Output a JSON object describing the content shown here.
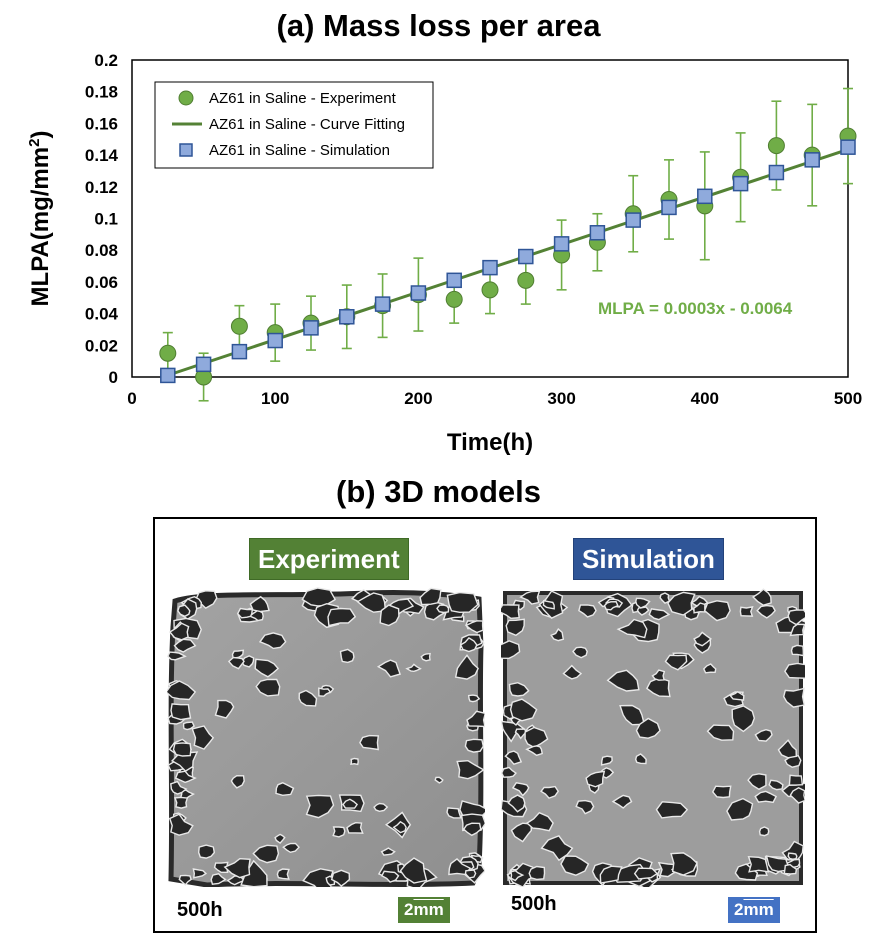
{
  "titles": {
    "a": "(a) Mass loss per area",
    "b": "(b) 3D models"
  },
  "chart_data": {
    "type": "scatter",
    "title": "(a) Mass loss per area",
    "xlabel": "Time(h)",
    "ylabel": "MLPA(mg/mm",
    "ylabel_sup": "2",
    "ylabel_close": ")",
    "xlim": [
      0,
      500
    ],
    "ylim": [
      0,
      0.2
    ],
    "xticks": [
      0,
      100,
      200,
      300,
      400,
      500
    ],
    "yticks": [
      0,
      0.02,
      0.04,
      0.06,
      0.08,
      0.1,
      0.12,
      0.14,
      0.16,
      0.18,
      0.2
    ],
    "ytick_labels": [
      "0",
      "0.02",
      "0.04",
      "0.06",
      "0.08",
      "0.1",
      "0.12",
      "0.14",
      "0.16",
      "0.18",
      "0.2"
    ],
    "grid": false,
    "legend_position": "top-left",
    "annotation": "MLPA = 0.0003x - 0.0064",
    "series": [
      {
        "name": "AZ61 in Saline - Experiment",
        "kind": "scatter-errorbar",
        "marker": "circle",
        "color": "#70ad47",
        "x": [
          25,
          50,
          75,
          100,
          125,
          150,
          175,
          200,
          225,
          250,
          275,
          300,
          325,
          350,
          375,
          400,
          425,
          450,
          475,
          500
        ],
        "y": [
          0.015,
          0.0,
          0.032,
          0.028,
          0.034,
          0.038,
          0.045,
          0.052,
          0.049,
          0.055,
          0.061,
          0.077,
          0.085,
          0.103,
          0.112,
          0.108,
          0.126,
          0.146,
          0.14,
          0.152
        ],
        "err": [
          0.013,
          0.015,
          0.013,
          0.018,
          0.017,
          0.02,
          0.02,
          0.023,
          0.015,
          0.015,
          0.015,
          0.022,
          0.018,
          0.024,
          0.025,
          0.034,
          0.028,
          0.028,
          0.032,
          0.03
        ]
      },
      {
        "name": "AZ61 in Saline - Curve Fitting",
        "kind": "line",
        "color": "#548235",
        "x": [
          25,
          500
        ],
        "y": [
          0.0011,
          0.1436
        ]
      },
      {
        "name": "AZ61 in Saline - Simulation",
        "kind": "scatter",
        "marker": "square",
        "color": "#4472c4",
        "x": [
          25,
          50,
          75,
          100,
          125,
          150,
          175,
          200,
          225,
          250,
          275,
          300,
          325,
          350,
          375,
          400,
          425,
          450,
          475,
          500
        ],
        "y": [
          0.001,
          0.008,
          0.016,
          0.023,
          0.031,
          0.038,
          0.046,
          0.053,
          0.061,
          0.069,
          0.076,
          0.084,
          0.091,
          0.099,
          0.107,
          0.114,
          0.122,
          0.129,
          0.137,
          0.145
        ]
      }
    ]
  },
  "models": {
    "experiment_label": "Experiment",
    "simulation_label": "Simulation",
    "experiment_time": "500h",
    "simulation_time": "500h",
    "scale_number": "2",
    "scale_unit": "mm"
  }
}
